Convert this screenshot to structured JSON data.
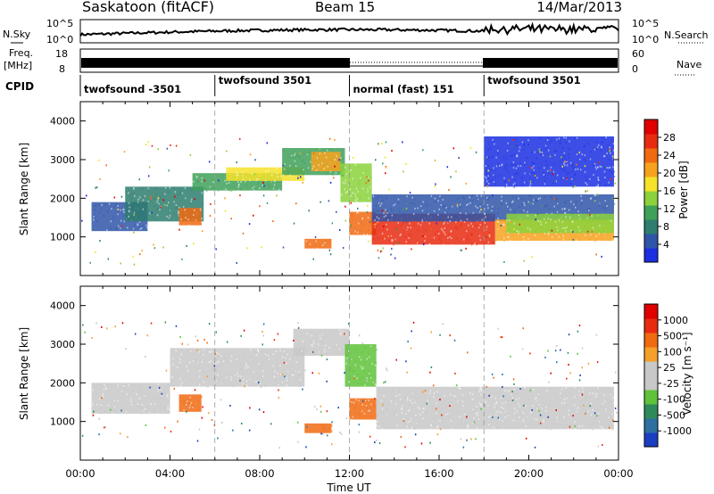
{
  "header": {
    "station": "Saskatoon (fitACF)",
    "beam": "Beam 15",
    "date": "14/Mar/2013"
  },
  "top_panels": {
    "nsky_label": "N.Sky",
    "nsky_ticks": [
      "10^5",
      "10^0"
    ],
    "nsearch_label": "N.Search",
    "nsearch_ticks": [
      "10^5",
      "10^0"
    ],
    "freq_label": "Freq.",
    "freq_unit": "[MHz]",
    "freq_ticks": [
      "18",
      "8"
    ],
    "nave_label": "Nave",
    "nave_ticks": [
      "60",
      "0"
    ],
    "cpid_label": "CPID"
  },
  "cpid_segments": [
    {
      "start_hour": 0,
      "label": "twofsound -3501"
    },
    {
      "start_hour": 6,
      "label": "twofsound 3501"
    },
    {
      "start_hour": 12,
      "label": "normal (fast) 151"
    },
    {
      "start_hour": 18,
      "label": "twofsound 3501"
    }
  ],
  "chart_data": [
    {
      "type": "heatmap",
      "name": "power",
      "ylabel": "Slant Range [km]",
      "ylim": [
        0,
        4500
      ],
      "yticks": [
        "1000",
        "2000",
        "3000",
        "4000"
      ],
      "xlim": [
        0,
        24
      ],
      "colorbar": {
        "label": "Power [dB]",
        "ticks": [
          "28",
          "24",
          "20",
          "16",
          "12",
          "8",
          "4"
        ],
        "colors": [
          "#1a2fe0",
          "#2f55a8",
          "#2e7d6e",
          "#3fa05a",
          "#8bd23c",
          "#f5e22a",
          "#f7a21e",
          "#f06a12",
          "#e82a10",
          "#e00000"
        ]
      },
      "bands": [
        {
          "t0": 0.5,
          "t1": 3.0,
          "r0": 1150,
          "r1": 1900,
          "c": "#2f55a8"
        },
        {
          "t0": 2.0,
          "t1": 5.5,
          "r0": 1400,
          "r1": 2300,
          "c": "#2e7d6e"
        },
        {
          "t0": 4.4,
          "t1": 5.4,
          "r0": 1300,
          "r1": 1750,
          "c": "#f06a12"
        },
        {
          "t0": 5.0,
          "t1": 9.0,
          "r0": 2200,
          "r1": 2650,
          "c": "#3fa05a"
        },
        {
          "t0": 6.5,
          "t1": 10.0,
          "r0": 2450,
          "r1": 2800,
          "c": "#f5e22a"
        },
        {
          "t0": 9.0,
          "t1": 11.8,
          "r0": 2600,
          "r1": 3300,
          "c": "#3fa05a"
        },
        {
          "t0": 10.3,
          "t1": 11.6,
          "r0": 2700,
          "r1": 3200,
          "c": "#f7a21e"
        },
        {
          "t0": 11.6,
          "t1": 13.0,
          "r0": 1900,
          "r1": 2900,
          "c": "#8bd23c"
        },
        {
          "t0": 10.0,
          "t1": 11.2,
          "r0": 700,
          "r1": 950,
          "c": "#f06a12"
        },
        {
          "t0": 12.0,
          "t1": 13.2,
          "r0": 1050,
          "r1": 1650,
          "c": "#f06a12"
        },
        {
          "t0": 13.0,
          "t1": 18.5,
          "r0": 800,
          "r1": 1600,
          "c": "#e82a10"
        },
        {
          "t0": 13.0,
          "t1": 23.8,
          "r0": 1400,
          "r1": 2100,
          "c": "#2f55a8"
        },
        {
          "t0": 18.5,
          "t1": 23.8,
          "r0": 900,
          "r1": 1450,
          "c": "#f7a21e"
        },
        {
          "t0": 19.0,
          "t1": 23.8,
          "r0": 1100,
          "r1": 1600,
          "c": "#8bd23c"
        },
        {
          "t0": 18.0,
          "t1": 23.8,
          "r0": 2300,
          "r1": 3600,
          "c": "#1a2fe0"
        }
      ]
    },
    {
      "type": "heatmap",
      "name": "velocity",
      "ylabel": "Slant Range [km]",
      "ylim": [
        0,
        4500
      ],
      "yticks": [
        "1000",
        "2000",
        "3000",
        "4000"
      ],
      "xlim": [
        0,
        24
      ],
      "xticks": [
        "00:00",
        "04:00",
        "08:00",
        "12:00",
        "16:00",
        "20:00",
        "00:00"
      ],
      "xlabel": "Time UT",
      "colorbar": {
        "label": "Velocity [m s⁻¹]",
        "ticks": [
          "1000",
          "500",
          "100",
          "25",
          "-25",
          "-100",
          "-500",
          "-1000"
        ],
        "colors": [
          "#1a3fc0",
          "#2d6fa0",
          "#2e8a5a",
          "#5fc23a",
          "#c8c8c8",
          "#c8c8c8",
          "#f5a02a",
          "#f06a12",
          "#e82a10",
          "#e00000"
        ]
      },
      "bands": [
        {
          "t0": 0.5,
          "t1": 4.0,
          "r0": 1200,
          "r1": 2000,
          "c": "#c8c8c8"
        },
        {
          "t0": 4.0,
          "t1": 10.0,
          "r0": 1900,
          "r1": 2900,
          "c": "#c8c8c8"
        },
        {
          "t0": 4.4,
          "t1": 5.4,
          "r0": 1250,
          "r1": 1700,
          "c": "#f06a12"
        },
        {
          "t0": 9.5,
          "t1": 12.0,
          "r0": 2700,
          "r1": 3400,
          "c": "#c8c8c8"
        },
        {
          "t0": 11.8,
          "t1": 13.2,
          "r0": 1900,
          "r1": 3000,
          "c": "#5fc23a"
        },
        {
          "t0": 10.0,
          "t1": 11.2,
          "r0": 700,
          "r1": 950,
          "c": "#f06a12"
        },
        {
          "t0": 12.0,
          "t1": 13.2,
          "r0": 1050,
          "r1": 1600,
          "c": "#f06a12"
        },
        {
          "t0": 13.2,
          "t1": 23.8,
          "r0": 800,
          "r1": 1900,
          "c": "#c8c8c8"
        }
      ]
    }
  ]
}
